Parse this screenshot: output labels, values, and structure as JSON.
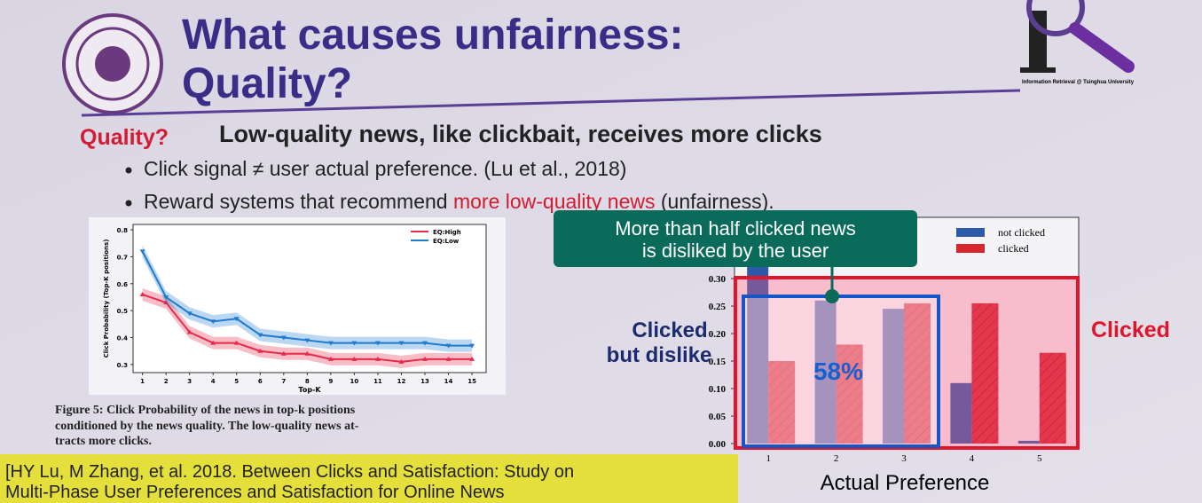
{
  "slide": {
    "title_lines": [
      "What causes unfairness:",
      "Quality?"
    ],
    "logo_text": "Information Retrieval @ Tsinghua University",
    "heading": {
      "label": "Quality?",
      "text": "Low-quality news, like clickbait, receives more clicks"
    },
    "bullets": [
      {
        "text": "Click signal ≠ user actual preference. (Lu et al., 2018)"
      },
      {
        "before": "Reward systems that recommend ",
        "highlight": "more low-quality news",
        "after": " (unfairness)."
      }
    ],
    "caption_lines": [
      "Figure 5: Click Probability of the news in top-k positions",
      "conditioned by the news quality. The low-quality news at-",
      "tracts more clicks."
    ],
    "reference_lines": [
      "[HY Lu, M Zhang, et al. 2018. Between Clicks and Satisfaction: Study on",
      "Multi-Phase User Preferences and Satisfaction for Online News"
    ],
    "callout_lines": [
      "More than half clicked news",
      "is disliked by the user"
    ],
    "left_label_lines": [
      "Clicked",
      "but dislike"
    ],
    "right_label": "Clicked",
    "percent_label": "58%"
  },
  "chart_data": [
    {
      "type": "line",
      "x_label": "Top-K",
      "y_label": "Click Probability (Top-K positions)",
      "x": [
        1,
        2,
        3,
        4,
        5,
        6,
        7,
        8,
        9,
        10,
        11,
        12,
        13,
        14,
        15
      ],
      "xlim": [
        0.6,
        15.6
      ],
      "xticks": [
        1,
        2,
        3,
        4,
        5,
        6,
        7,
        8,
        9,
        10,
        11,
        12,
        13,
        14,
        15
      ],
      "ylim": [
        0.27,
        0.82
      ],
      "yticks": [
        0.3,
        0.4,
        0.5,
        0.6,
        0.7,
        0.8
      ],
      "legend": "upper right",
      "series": [
        {
          "name": "EQ:High",
          "color": "#e8294a",
          "values": [
            0.56,
            0.53,
            0.42,
            0.38,
            0.38,
            0.35,
            0.34,
            0.34,
            0.32,
            0.32,
            0.32,
            0.31,
            0.32,
            0.32,
            0.32
          ]
        },
        {
          "name": "EQ:Low",
          "color": "#1f7bd0",
          "values": [
            0.72,
            0.55,
            0.49,
            0.46,
            0.47,
            0.41,
            0.4,
            0.39,
            0.38,
            0.38,
            0.38,
            0.38,
            0.38,
            0.37,
            0.37
          ]
        }
      ]
    },
    {
      "type": "bar",
      "x_label": "Actual Preference",
      "categories": [
        "1",
        "2",
        "3",
        "4",
        "5"
      ],
      "ylim": [
        0,
        0.4
      ],
      "yticks": [
        {
          "value": 0,
          "label": "0.00"
        },
        {
          "value": 0.05,
          "label": "0.05"
        },
        {
          "value": 0.1,
          "label": "0.10"
        },
        {
          "value": 0.15,
          "label": "0.15"
        },
        {
          "value": 0.2,
          "label": "0.20"
        },
        {
          "value": 0.25,
          "label": "0.25"
        },
        {
          "value": 0.3,
          "label": "0.30"
        }
      ],
      "series": [
        {
          "name": "not clicked",
          "color": "#2c5aa8",
          "values": [
            0.33,
            0.26,
            0.245,
            0.11,
            0.005
          ]
        },
        {
          "name": "clicked",
          "color": "#d8242e",
          "values": [
            0.15,
            0.18,
            0.255,
            0.255,
            0.165
          ]
        }
      ]
    }
  ]
}
